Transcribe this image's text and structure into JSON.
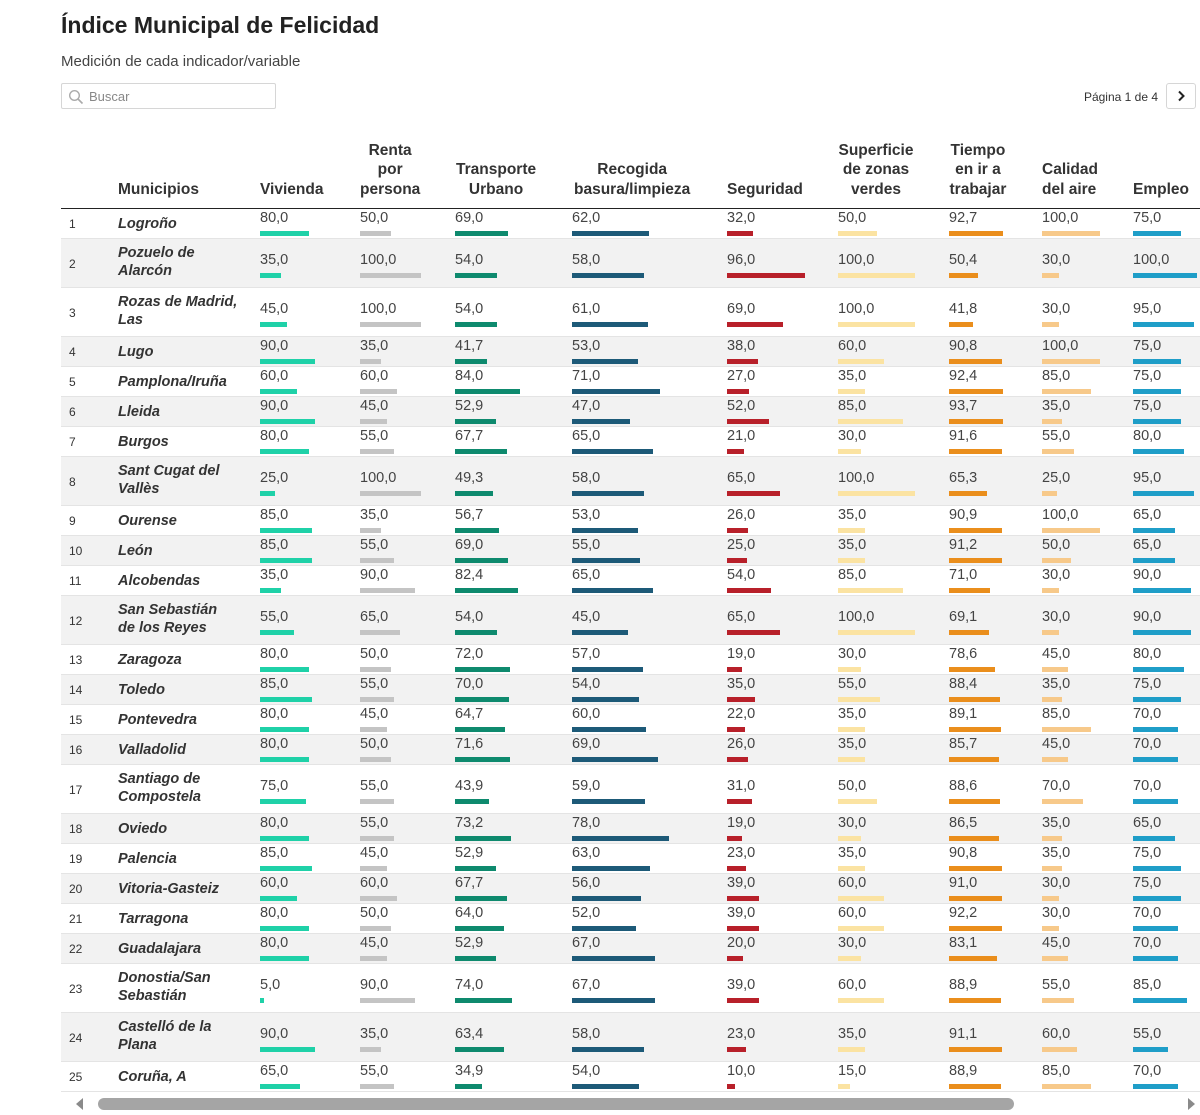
{
  "title": "Índice Municipal de Felicidad",
  "subtitle": "Medición de cada indicador/variable",
  "search": {
    "placeholder": "Buscar"
  },
  "pagination": {
    "label": "Página 1 de 4"
  },
  "columns": [
    {
      "key": "municipio",
      "label": "Municipios"
    },
    {
      "key": "vivienda",
      "label": "Vivienda",
      "color": "#1fd1a8"
    },
    {
      "key": "renta",
      "label": "Renta\npor\npersona",
      "color": "#c4c4c4"
    },
    {
      "key": "transporte",
      "label": "Transporte\nUrbano",
      "color": "#0e8a6e"
    },
    {
      "key": "basura",
      "label": "Recogida\nbasura/limpieza",
      "color": "#1d5a78"
    },
    {
      "key": "seguridad",
      "label": "Seguridad",
      "color": "#b8202a"
    },
    {
      "key": "verdes",
      "label": "Superficie\nde zonas\nverdes",
      "color": "#fbe3a2"
    },
    {
      "key": "trabajo",
      "label": "Tiempo\nen ir a\ntrabajar",
      "color": "#ea8e1c"
    },
    {
      "key": "aire",
      "label": "Calidad\ndel aire",
      "color": "#f7c98a"
    },
    {
      "key": "empleo",
      "label": "Empleo",
      "color": "#1f9ec8"
    }
  ],
  "rows": [
    {
      "rank": "1",
      "name": "Logroño",
      "values": [
        "80,0",
        "50,0",
        "69,0",
        "62,0",
        "32,0",
        "50,0",
        "92,7",
        "100,0",
        "75,0"
      ]
    },
    {
      "rank": "2",
      "name": "Pozuelo de Alarcón",
      "values": [
        "35,0",
        "100,0",
        "54,0",
        "58,0",
        "96,0",
        "100,0",
        "50,4",
        "30,0",
        "100,0"
      ]
    },
    {
      "rank": "3",
      "name": "Rozas de Madrid, Las",
      "values": [
        "45,0",
        "100,0",
        "54,0",
        "61,0",
        "69,0",
        "100,0",
        "41,8",
        "30,0",
        "95,0"
      ]
    },
    {
      "rank": "4",
      "name": "Lugo",
      "values": [
        "90,0",
        "35,0",
        "41,7",
        "53,0",
        "38,0",
        "60,0",
        "90,8",
        "100,0",
        "75,0"
      ]
    },
    {
      "rank": "5",
      "name": "Pamplona/Iruña",
      "values": [
        "60,0",
        "60,0",
        "84,0",
        "71,0",
        "27,0",
        "35,0",
        "92,4",
        "85,0",
        "75,0"
      ]
    },
    {
      "rank": "6",
      "name": "Lleida",
      "values": [
        "90,0",
        "45,0",
        "52,9",
        "47,0",
        "52,0",
        "85,0",
        "93,7",
        "35,0",
        "75,0"
      ]
    },
    {
      "rank": "7",
      "name": "Burgos",
      "values": [
        "80,0",
        "55,0",
        "67,7",
        "65,0",
        "21,0",
        "30,0",
        "91,6",
        "55,0",
        "80,0"
      ]
    },
    {
      "rank": "8",
      "name": "Sant Cugat del Vallès",
      "values": [
        "25,0",
        "100,0",
        "49,3",
        "58,0",
        "65,0",
        "100,0",
        "65,3",
        "25,0",
        "95,0"
      ]
    },
    {
      "rank": "9",
      "name": "Ourense",
      "values": [
        "85,0",
        "35,0",
        "56,7",
        "53,0",
        "26,0",
        "35,0",
        "90,9",
        "100,0",
        "65,0"
      ]
    },
    {
      "rank": "10",
      "name": "León",
      "values": [
        "85,0",
        "55,0",
        "69,0",
        "55,0",
        "25,0",
        "35,0",
        "91,2",
        "50,0",
        "65,0"
      ]
    },
    {
      "rank": "11",
      "name": "Alcobendas",
      "values": [
        "35,0",
        "90,0",
        "82,4",
        "65,0",
        "54,0",
        "85,0",
        "71,0",
        "30,0",
        "90,0"
      ]
    },
    {
      "rank": "12",
      "name": "San Sebastián de los Reyes",
      "values": [
        "55,0",
        "65,0",
        "54,0",
        "45,0",
        "65,0",
        "100,0",
        "69,1",
        "30,0",
        "90,0"
      ]
    },
    {
      "rank": "13",
      "name": "Zaragoza",
      "values": [
        "80,0",
        "50,0",
        "72,0",
        "57,0",
        "19,0",
        "30,0",
        "78,6",
        "45,0",
        "80,0"
      ]
    },
    {
      "rank": "14",
      "name": "Toledo",
      "values": [
        "85,0",
        "55,0",
        "70,0",
        "54,0",
        "35,0",
        "55,0",
        "88,4",
        "35,0",
        "75,0"
      ]
    },
    {
      "rank": "15",
      "name": "Pontevedra",
      "values": [
        "80,0",
        "45,0",
        "64,7",
        "60,0",
        "22,0",
        "35,0",
        "89,1",
        "85,0",
        "70,0"
      ]
    },
    {
      "rank": "16",
      "name": "Valladolid",
      "values": [
        "80,0",
        "50,0",
        "71,6",
        "69,0",
        "26,0",
        "35,0",
        "85,7",
        "45,0",
        "70,0"
      ]
    },
    {
      "rank": "17",
      "name": "Santiago de Compostela",
      "values": [
        "75,0",
        "55,0",
        "43,9",
        "59,0",
        "31,0",
        "50,0",
        "88,6",
        "70,0",
        "70,0"
      ]
    },
    {
      "rank": "18",
      "name": "Oviedo",
      "values": [
        "80,0",
        "55,0",
        "73,2",
        "78,0",
        "19,0",
        "30,0",
        "86,5",
        "35,0",
        "65,0"
      ]
    },
    {
      "rank": "19",
      "name": "Palencia",
      "values": [
        "85,0",
        "45,0",
        "52,9",
        "63,0",
        "23,0",
        "35,0",
        "90,8",
        "35,0",
        "75,0"
      ]
    },
    {
      "rank": "20",
      "name": "Vitoria-Gasteiz",
      "values": [
        "60,0",
        "60,0",
        "67,7",
        "56,0",
        "39,0",
        "60,0",
        "91,0",
        "30,0",
        "75,0"
      ]
    },
    {
      "rank": "21",
      "name": "Tarragona",
      "values": [
        "80,0",
        "50,0",
        "64,0",
        "52,0",
        "39,0",
        "60,0",
        "92,2",
        "30,0",
        "70,0"
      ]
    },
    {
      "rank": "22",
      "name": "Guadalajara",
      "values": [
        "80,0",
        "45,0",
        "52,9",
        "67,0",
        "20,0",
        "30,0",
        "83,1",
        "45,0",
        "70,0"
      ]
    },
    {
      "rank": "23",
      "name": "Donostia/San Sebastián",
      "values": [
        "5,0",
        "90,0",
        "74,0",
        "67,0",
        "39,0",
        "60,0",
        "88,9",
        "55,0",
        "85,0"
      ]
    },
    {
      "rank": "24",
      "name": "Castelló de la Plana",
      "values": [
        "90,0",
        "35,0",
        "63,4",
        "58,0",
        "23,0",
        "35,0",
        "91,1",
        "60,0",
        "55,0"
      ]
    },
    {
      "rank": "25",
      "name": "Coruña, A",
      "values": [
        "65,0",
        "55,0",
        "34,9",
        "54,0",
        "10,0",
        "15,0",
        "88,9",
        "85,0",
        "70,0"
      ]
    }
  ]
}
